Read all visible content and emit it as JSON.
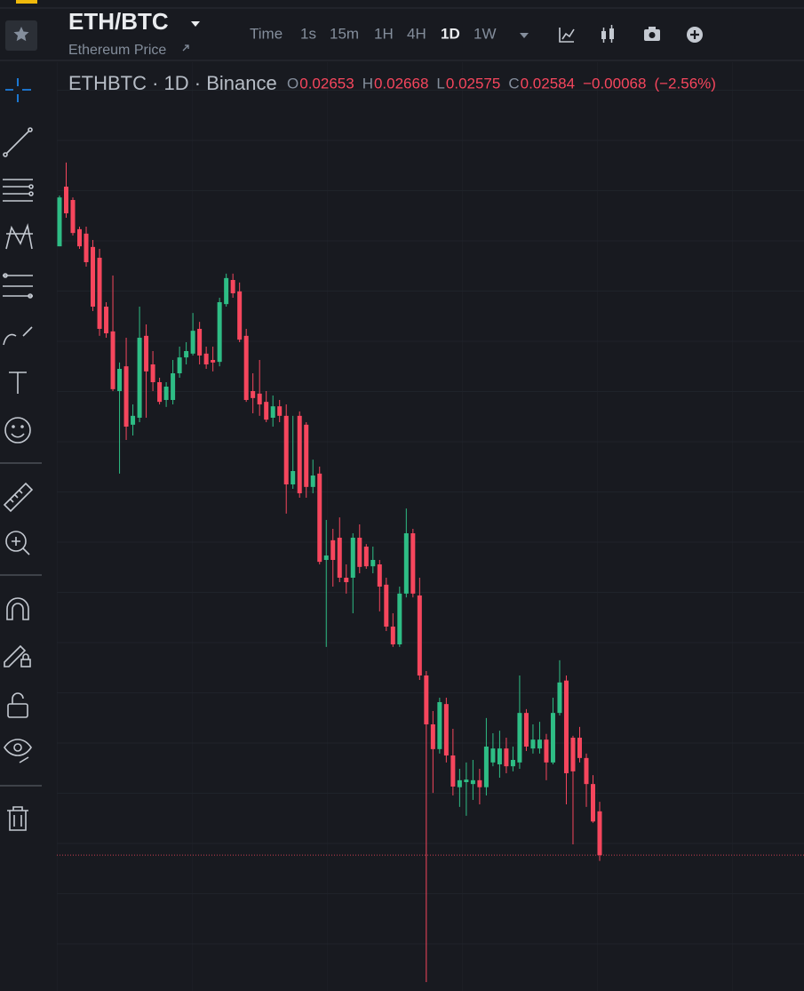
{
  "header": {
    "symbol": "ETH/BTC",
    "subtitle": "Ethereum Price",
    "intervals": [
      "Time",
      "1s",
      "15m",
      "1H",
      "4H",
      "1D",
      "1W"
    ],
    "active_interval": 5
  },
  "legend": {
    "symbol": "ETHBTC · 1D · Binance",
    "open_label": "O",
    "open": 0.02653,
    "high_label": "H",
    "high": 0.02668,
    "low_label": "L",
    "low": 0.02575,
    "close_label": "C",
    "close": 0.02584,
    "change": {
      "value": -0.00068,
      "label": "−0.00068"
    },
    "change_percent": {
      "value": -2.56,
      "label": "(−2.56%)"
    }
  },
  "chart_data": {
    "type": "candlestick",
    "up_color": "#2ebd85",
    "down_color": "#f6465d",
    "ylim": [
      0.02377,
      0.03833
    ],
    "open": [
      0.03543,
      0.03637,
      0.03616,
      0.0357,
      0.03563,
      0.03542,
      0.03525,
      0.03448,
      0.03409,
      0.03315,
      0.03354,
      0.03262,
      0.03273,
      0.03402,
      0.03357,
      0.03329,
      0.03301,
      0.03301,
      0.03343,
      0.03368,
      0.03374,
      0.03413,
      0.03374,
      0.03364,
      0.03361,
      0.03452,
      0.0349,
      0.03472,
      0.03402,
      0.03315,
      0.03311,
      0.03298,
      0.03273,
      0.03291,
      0.03276,
      0.03168,
      0.03276,
      0.03262,
      0.03164,
      0.03185,
      0.03049,
      0.0308,
      0.03084,
      0.03021,
      0.03021,
      0.03084,
      0.0307,
      0.03039,
      0.03042,
      0.0301,
      0.02944,
      0.02916,
      0.02996,
      0.03091,
      0.02993,
      0.02867,
      0.0279,
      0.02751,
      0.02822,
      0.02741,
      0.02691,
      0.02699,
      0.02696,
      0.02702,
      0.02691,
      0.0273,
      0.02727,
      0.02752,
      0.02724,
      0.0273,
      0.02808,
      0.02752,
      0.02752,
      0.02766,
      0.0273,
      0.02808,
      0.02859,
      0.02769,
      0.02769,
      0.02737,
      0.02696,
      0.02653
    ],
    "high": [
      0.03623,
      0.03675,
      0.0362,
      0.03574,
      0.03574,
      0.03553,
      0.03539,
      0.03455,
      0.03497,
      0.0336,
      0.03399,
      0.03294,
      0.03448,
      0.0342,
      0.03378,
      0.03336,
      0.03329,
      0.03364,
      0.03385,
      0.03392,
      0.03438,
      0.03424,
      0.03385,
      0.03385,
      0.03462,
      0.035,
      0.035,
      0.03486,
      0.03413,
      0.03343,
      0.03364,
      0.03315,
      0.03308,
      0.03301,
      0.03294,
      0.03276,
      0.03283,
      0.03266,
      0.03207,
      0.03196,
      0.03112,
      0.03098,
      0.03116,
      0.03042,
      0.03091,
      0.03105,
      0.03074,
      0.0307,
      0.03049,
      0.03021,
      0.02965,
      0.03007,
      0.0313,
      0.03098,
      0.03021,
      0.02874,
      0.02811,
      0.02832,
      0.02832,
      0.02783,
      0.0272,
      0.0273,
      0.02734,
      0.0272,
      0.028,
      0.02776,
      0.0278,
      0.02769,
      0.02755,
      0.02867,
      0.02814,
      0.0279,
      0.02794,
      0.02775,
      0.02832,
      0.02891,
      0.02867,
      0.02772,
      0.02786,
      0.02744,
      0.0271,
      0.02668
    ],
    "low": [
      0.03543,
      0.03588,
      0.0356,
      0.03539,
      0.03511,
      0.03441,
      0.03402,
      0.03399,
      0.03315,
      0.03185,
      0.03238,
      0.03245,
      0.03266,
      0.03273,
      0.03315,
      0.03294,
      0.0329,
      0.03294,
      0.03336,
      0.03357,
      0.03371,
      0.03357,
      0.0335,
      0.03346,
      0.03354,
      0.03448,
      0.03462,
      0.03392,
      0.03298,
      0.0328,
      0.03276,
      0.03266,
      0.03259,
      0.03266,
      0.03122,
      0.03161,
      0.03147,
      0.03147,
      0.03154,
      0.03042,
      0.02912,
      0.03007,
      0.03014,
      0.02996,
      0.02965,
      0.03028,
      0.03035,
      0.03028,
      0.02968,
      0.02937,
      0.02912,
      0.02912,
      0.0299,
      0.0299,
      0.0286,
      0.02384,
      0.02682,
      0.02744,
      0.0273,
      0.02678,
      0.0266,
      0.02646,
      0.02671,
      0.02664,
      0.02678,
      0.02724,
      0.02706,
      0.02713,
      0.02716,
      0.0272,
      0.02748,
      0.02744,
      0.02744,
      0.02702,
      0.02727,
      0.02804,
      0.02664,
      0.02601,
      0.0273,
      0.0266,
      0.02635,
      0.02575
    ],
    "close": [
      0.0362,
      0.03595,
      0.03564,
      0.03543,
      0.03518,
      0.03448,
      0.03413,
      0.03406,
      0.03318,
      0.0335,
      0.03259,
      0.03276,
      0.03399,
      0.03346,
      0.03329,
      0.03298,
      0.03322,
      0.03343,
      0.03368,
      0.03378,
      0.0341,
      0.03371,
      0.03357,
      0.0336,
      0.03455,
      0.03493,
      0.03469,
      0.03396,
      0.03301,
      0.03304,
      0.03294,
      0.0327,
      0.03291,
      0.03276,
      0.03168,
      0.03189,
      0.03154,
      0.03164,
      0.03182,
      0.03046,
      0.03056,
      0.03049,
      0.03021,
      0.03014,
      0.03084,
      0.03038,
      0.03039,
      0.03049,
      0.03007,
      0.02944,
      0.02916,
      0.02996,
      0.03091,
      0.02996,
      0.02867,
      0.0279,
      0.02751,
      0.02825,
      0.02741,
      0.02692,
      0.02702,
      0.02703,
      0.02702,
      0.02691,
      0.02755,
      0.02752,
      0.02752,
      0.02724,
      0.02734,
      0.02808,
      0.02755,
      0.02766,
      0.02766,
      0.0273,
      0.02808,
      0.02856,
      0.02713,
      0.02716,
      0.02737,
      0.02696,
      0.02637,
      0.02584
    ]
  }
}
